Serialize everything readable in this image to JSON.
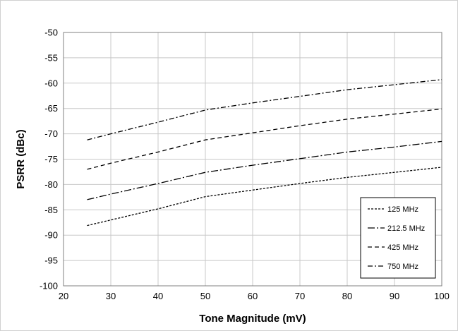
{
  "chart_data": {
    "type": "line",
    "xlabel": "Tone Magnitude (mV)",
    "ylabel": "PSRR (dBc)",
    "xlim": [
      20,
      100
    ],
    "ylim": [
      -100,
      -50
    ],
    "x_ticks": [
      20,
      30,
      40,
      50,
      60,
      70,
      80,
      90,
      100
    ],
    "y_ticks": [
      -50,
      -55,
      -60,
      -65,
      -70,
      -75,
      -80,
      -85,
      -90,
      -95,
      -100
    ],
    "grid": true,
    "legend_position": "bottom-right",
    "series": [
      {
        "name": "125 MHz",
        "dash": "short-dash",
        "points": [
          [
            25,
            -88.1
          ],
          [
            30,
            -87
          ],
          [
            40,
            -84.8
          ],
          [
            50,
            -82.4
          ],
          [
            60,
            -81.1
          ],
          [
            70,
            -79.8
          ],
          [
            80,
            -78.6
          ],
          [
            90,
            -77.6
          ],
          [
            100,
            -76.6
          ]
        ]
      },
      {
        "name": "212.5 MHz",
        "dash": "long-dash-dot",
        "points": [
          [
            25,
            -83
          ],
          [
            30,
            -81.9
          ],
          [
            40,
            -79.8
          ],
          [
            50,
            -77.6
          ],
          [
            60,
            -76.2
          ],
          [
            70,
            -74.9
          ],
          [
            80,
            -73.6
          ],
          [
            90,
            -72.6
          ],
          [
            100,
            -71.5
          ]
        ]
      },
      {
        "name": "425 MHz",
        "dash": "dash",
        "points": [
          [
            25,
            -77
          ],
          [
            30,
            -75.8
          ],
          [
            40,
            -73.6
          ],
          [
            50,
            -71.2
          ],
          [
            60,
            -69.8
          ],
          [
            70,
            -68.4
          ],
          [
            80,
            -67.1
          ],
          [
            90,
            -66.1
          ],
          [
            100,
            -65.1
          ]
        ]
      },
      {
        "name": "750 MHz",
        "dash": "dash-dot",
        "points": [
          [
            25,
            -71.2
          ],
          [
            30,
            -70
          ],
          [
            40,
            -67.7
          ],
          [
            50,
            -65.3
          ],
          [
            60,
            -63.9
          ],
          [
            70,
            -62.6
          ],
          [
            80,
            -61.3
          ],
          [
            90,
            -60.3
          ],
          [
            100,
            -59.3
          ]
        ]
      }
    ]
  }
}
